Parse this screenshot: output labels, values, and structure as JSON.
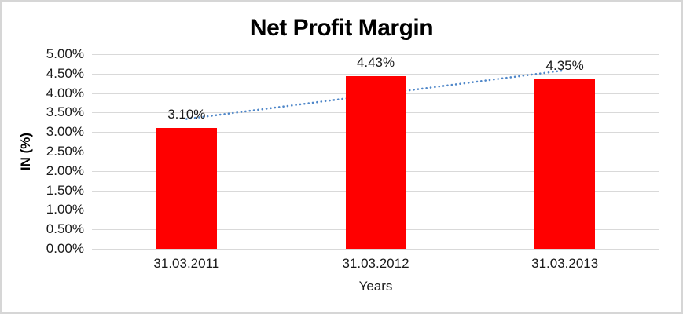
{
  "window": {
    "background": "#ffffff",
    "border_color": "#d6d6d6"
  },
  "chart_data": {
    "type": "bar",
    "title": "Net Profit Margin",
    "categories": [
      "31.03.2011",
      "31.03.2012",
      "31.03.2013"
    ],
    "values": [
      3.1,
      4.43,
      4.35
    ],
    "data_labels": [
      "3.10%",
      "4.43%",
      "4.35%"
    ],
    "xlabel": "Years",
    "ylabel": "IN (%)",
    "ylim": [
      0,
      5
    ],
    "ytick_step": 0.5,
    "ytick_labels": [
      "5.00%",
      "4.50%",
      "4.00%",
      "3.50%",
      "3.00%",
      "2.50%",
      "2.00%",
      "1.50%",
      "1.00%",
      "0.50%",
      "0.00%"
    ],
    "bar_color": "#ff0000",
    "gridline_color": "#d9d9d9",
    "grid": "horizontal",
    "legend": "none",
    "trendline": {
      "type": "linear",
      "style": "dotted",
      "color": "#4f87c9"
    }
  }
}
